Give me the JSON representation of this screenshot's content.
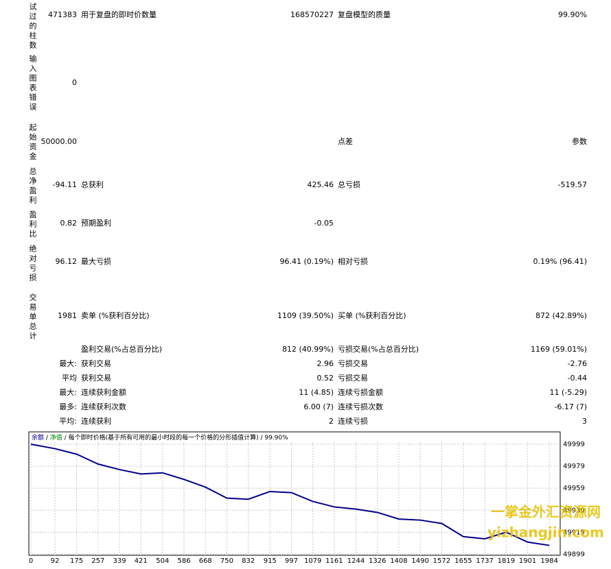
{
  "report": {
    "rows": [
      {
        "label": "试过的柱数",
        "value": "471383",
        "label2": "用于复盘的即时价数量",
        "value2": "168570227",
        "label3": "复盘模型的质量",
        "value3": "99.90%"
      },
      {
        "label": "输入图表错误",
        "value": "0"
      },
      {
        "label": "起始资金",
        "value": "50000.00",
        "label3": "点差",
        "value3": "参数"
      },
      {
        "label": "总净盈利",
        "value": "-94.11",
        "label2": "总获利",
        "value2": "425.46",
        "label3": "总亏损",
        "value3": "-519.57"
      },
      {
        "label": "盈利比",
        "value": "0.82",
        "label2": "预期盈利",
        "value2": "-0.05"
      },
      {
        "label": "绝对亏损",
        "value": "96.12",
        "label2": "最大亏损",
        "value2": "96.41 (0.19%)",
        "label3": "相对亏损",
        "value3": "0.19% (96.41)"
      },
      {
        "label": "交易单总计",
        "value": "1981",
        "label2": "卖单 (%获利百分比)",
        "value2": "1109 (39.50%)",
        "label3": "买单 (%获利百分比)",
        "value3": "872 (42.89%)"
      },
      {
        "label2": "盈利交易(%占总百分比)",
        "value2": "812 (40.99%)",
        "label3": "亏损交易(%占总百分比)",
        "value3": "1169 (59.01%)"
      },
      {
        "value": "最大:",
        "label2": "获利交易",
        "value2": "2.96",
        "label3": "亏损交易",
        "value3": "-2.76"
      },
      {
        "value": "平均",
        "label2": "获利交易",
        "value2": "0.52",
        "label3": "亏损交易",
        "value3": "-0.44"
      },
      {
        "value": "最大:",
        "label2": "连续获利金额",
        "value2": "11 (4.85)",
        "label3": "连续亏损金额",
        "value3": "11 (-5.29)"
      },
      {
        "value": "最多:",
        "label2": "连续获利次数",
        "value2": "6.00 (7)",
        "label3": "连续亏损次数",
        "value3": "-6.17 (7)"
      },
      {
        "value": "平均:",
        "label2": "连续获利",
        "value2": "2",
        "label3": "连续亏损",
        "value3": "3"
      }
    ]
  },
  "chart_data": {
    "type": "line",
    "series": [
      {
        "name": "余额",
        "color": "#00008b",
        "x": [
          0,
          92,
          175,
          257,
          339,
          421,
          504,
          586,
          668,
          750,
          832,
          915,
          997,
          1079,
          1161,
          1244,
          1326,
          1408,
          1490,
          1572,
          1655,
          1737,
          1819,
          1901,
          1984
        ],
        "values": [
          49999,
          49995,
          49990,
          49981,
          49976,
          49972,
          49973,
          49967,
          49960,
          49950,
          49949,
          49956,
          49955,
          49947,
          49942,
          49940,
          49937,
          49931,
          49930,
          49927,
          49915,
          49913,
          49919,
          49910,
          49907
        ]
      }
    ],
    "equity_label": "净值",
    "equity_color": "#008000",
    "subtitle": "每个即时价格(基于所有可用的最小时段的每一个价格的分形插值计算) / 99.90%",
    "xlim": [
      0,
      2023
    ],
    "xticks": [
      0,
      92,
      175,
      257,
      339,
      421,
      504,
      586,
      668,
      750,
      832,
      915,
      997,
      1079,
      1161,
      1244,
      1326,
      1408,
      1490,
      1572,
      1655,
      1737,
      1819,
      1901,
      1984
    ],
    "ylim": [
      49898,
      50009
    ],
    "yticks": [
      49899,
      49919,
      49939,
      49959,
      49979,
      49999
    ],
    "grid": true
  },
  "watermark": {
    "line1": "一掌金外汇资源网",
    "line2": "yizhangjin.com"
  }
}
